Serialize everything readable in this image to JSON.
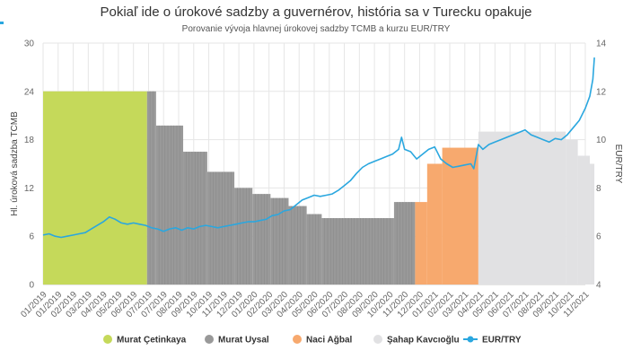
{
  "chart_data": {
    "type": "bar",
    "title": "Pokiaľ ide o úrokové sadzby a guvernérov, história sa v Turecku opakuje",
    "subtitle": "Porovanie vývoja hlavnej úrokovej sadzby TCMB a kurzu EUR/TRY",
    "ylabel": "Hl. úroková sadzba TCMB",
    "y2label": "EUR/TRY",
    "ylim": [
      0,
      30
    ],
    "y2lim": [
      4,
      14
    ],
    "yticks": [
      "0",
      "6",
      "12",
      "18",
      "24",
      "30"
    ],
    "y2ticks": [
      "4",
      "6",
      "8",
      "10",
      "12",
      "14"
    ],
    "grid": true,
    "legend_position": "bottom",
    "categories": [
      "01/2019",
      "01/2019",
      "02/2019",
      "03/2019",
      "04/2019",
      "05/2019",
      "06/2019",
      "07/2019",
      "07/2019",
      "08/2019",
      "09/2019",
      "10/2019",
      "11/2019",
      "12/2019",
      "01/2020",
      "02/2020",
      "03/2020",
      "04/2020",
      "05/2020",
      "06/2020",
      "07/2020",
      "08/2020",
      "09/2020",
      "10/2020",
      "11/2020",
      "12/2020",
      "01/2021",
      "02/2021",
      "03/2021",
      "04/2021",
      "05/2021",
      "06/2021",
      "07/2021",
      "08/2021",
      "09/2021",
      "10/2021",
      "11/2021"
    ],
    "series": [
      {
        "name": "Murat Çetinkaya",
        "type": "area",
        "color": "#c5d95a",
        "steps": [
          {
            "from": 0,
            "to": 6.9,
            "value": 24
          }
        ]
      },
      {
        "name": "Murat Uysal",
        "type": "area",
        "color": "#999999",
        "steps": [
          {
            "from": 6.9,
            "to": 7.5,
            "value": 24
          },
          {
            "from": 7.5,
            "to": 9.3,
            "value": 19.75
          },
          {
            "from": 9.3,
            "to": 10.9,
            "value": 16.5
          },
          {
            "from": 10.9,
            "to": 12.7,
            "value": 14
          },
          {
            "from": 12.7,
            "to": 13.9,
            "value": 12
          },
          {
            "from": 13.9,
            "to": 15.1,
            "value": 11.25
          },
          {
            "from": 15.1,
            "to": 16.3,
            "value": 10.75
          },
          {
            "from": 16.3,
            "to": 17.5,
            "value": 9.75
          },
          {
            "from": 17.5,
            "to": 18.5,
            "value": 8.75
          },
          {
            "from": 18.5,
            "to": 23.3,
            "value": 8.25
          },
          {
            "from": 23.3,
            "to": 24.7,
            "value": 10.25
          }
        ]
      },
      {
        "name": "Naci Ağbal",
        "type": "area",
        "color": "#f7a96e",
        "steps": [
          {
            "from": 24.7,
            "to": 25.5,
            "value": 10.25
          },
          {
            "from": 25.5,
            "to": 26.5,
            "value": 15
          },
          {
            "from": 26.5,
            "to": 28.9,
            "value": 17
          }
        ]
      },
      {
        "name": "Şahap Kavcıoğlu",
        "type": "area",
        "color": "#e1e1e3",
        "steps": [
          {
            "from": 28.9,
            "to": 34.7,
            "value": 19
          },
          {
            "from": 34.7,
            "to": 35.5,
            "value": 18
          },
          {
            "from": 35.5,
            "to": 36.3,
            "value": 16
          },
          {
            "from": 36.3,
            "to": 36.6,
            "value": 15
          }
        ]
      },
      {
        "name": "EUR/TRY",
        "type": "line",
        "axis": "right",
        "color": "#2aa7df",
        "points": [
          [
            0,
            6.05
          ],
          [
            0.4,
            6.1
          ],
          [
            0.8,
            6.0
          ],
          [
            1.2,
            5.95
          ],
          [
            1.6,
            6.0
          ],
          [
            2,
            6.05
          ],
          [
            2.4,
            6.1
          ],
          [
            2.8,
            6.15
          ],
          [
            3.2,
            6.3
          ],
          [
            3.6,
            6.45
          ],
          [
            4,
            6.6
          ],
          [
            4.4,
            6.8
          ],
          [
            4.8,
            6.7
          ],
          [
            5.2,
            6.55
          ],
          [
            5.6,
            6.5
          ],
          [
            6,
            6.55
          ],
          [
            6.4,
            6.5
          ],
          [
            6.8,
            6.45
          ],
          [
            7.2,
            6.35
          ],
          [
            7.6,
            6.3
          ],
          [
            8,
            6.2
          ],
          [
            8.4,
            6.3
          ],
          [
            8.8,
            6.35
          ],
          [
            9.2,
            6.25
          ],
          [
            9.6,
            6.35
          ],
          [
            10,
            6.3
          ],
          [
            10.4,
            6.4
          ],
          [
            10.8,
            6.45
          ],
          [
            11.2,
            6.4
          ],
          [
            11.6,
            6.35
          ],
          [
            12,
            6.4
          ],
          [
            12.4,
            6.45
          ],
          [
            12.8,
            6.5
          ],
          [
            13.2,
            6.55
          ],
          [
            13.6,
            6.6
          ],
          [
            14,
            6.6
          ],
          [
            14.4,
            6.65
          ],
          [
            14.8,
            6.7
          ],
          [
            15.2,
            6.85
          ],
          [
            15.6,
            6.9
          ],
          [
            16,
            7.05
          ],
          [
            16.4,
            7.1
          ],
          [
            16.8,
            7.3
          ],
          [
            17.2,
            7.5
          ],
          [
            17.6,
            7.6
          ],
          [
            18,
            7.7
          ],
          [
            18.4,
            7.65
          ],
          [
            18.8,
            7.7
          ],
          [
            19.2,
            7.75
          ],
          [
            19.6,
            7.9
          ],
          [
            20,
            8.1
          ],
          [
            20.4,
            8.3
          ],
          [
            20.8,
            8.6
          ],
          [
            21.2,
            8.85
          ],
          [
            21.6,
            9.0
          ],
          [
            22,
            9.1
          ],
          [
            22.4,
            9.2
          ],
          [
            22.8,
            9.3
          ],
          [
            23.2,
            9.4
          ],
          [
            23.6,
            9.6
          ],
          [
            23.8,
            10.1
          ],
          [
            24,
            9.6
          ],
          [
            24.4,
            9.5
          ],
          [
            24.8,
            9.2
          ],
          [
            25.2,
            9.4
          ],
          [
            25.6,
            9.6
          ],
          [
            26,
            9.7
          ],
          [
            26.4,
            9.2
          ],
          [
            26.8,
            9.0
          ],
          [
            27.2,
            8.85
          ],
          [
            27.6,
            8.9
          ],
          [
            28,
            8.95
          ],
          [
            28.4,
            9.0
          ],
          [
            28.6,
            8.8
          ],
          [
            28.9,
            9.8
          ],
          [
            29.2,
            9.6
          ],
          [
            29.6,
            9.8
          ],
          [
            30,
            9.9
          ],
          [
            30.4,
            10.0
          ],
          [
            30.8,
            10.1
          ],
          [
            31.2,
            10.2
          ],
          [
            31.6,
            10.3
          ],
          [
            32,
            10.4
          ],
          [
            32.4,
            10.2
          ],
          [
            32.8,
            10.1
          ],
          [
            33.2,
            10.0
          ],
          [
            33.6,
            9.9
          ],
          [
            34,
            10.05
          ],
          [
            34.4,
            10.0
          ],
          [
            34.8,
            10.2
          ],
          [
            35.2,
            10.5
          ],
          [
            35.6,
            10.8
          ],
          [
            36,
            11.3
          ],
          [
            36.3,
            11.8
          ],
          [
            36.5,
            12.5
          ],
          [
            36.6,
            13.4
          ]
        ]
      }
    ]
  }
}
